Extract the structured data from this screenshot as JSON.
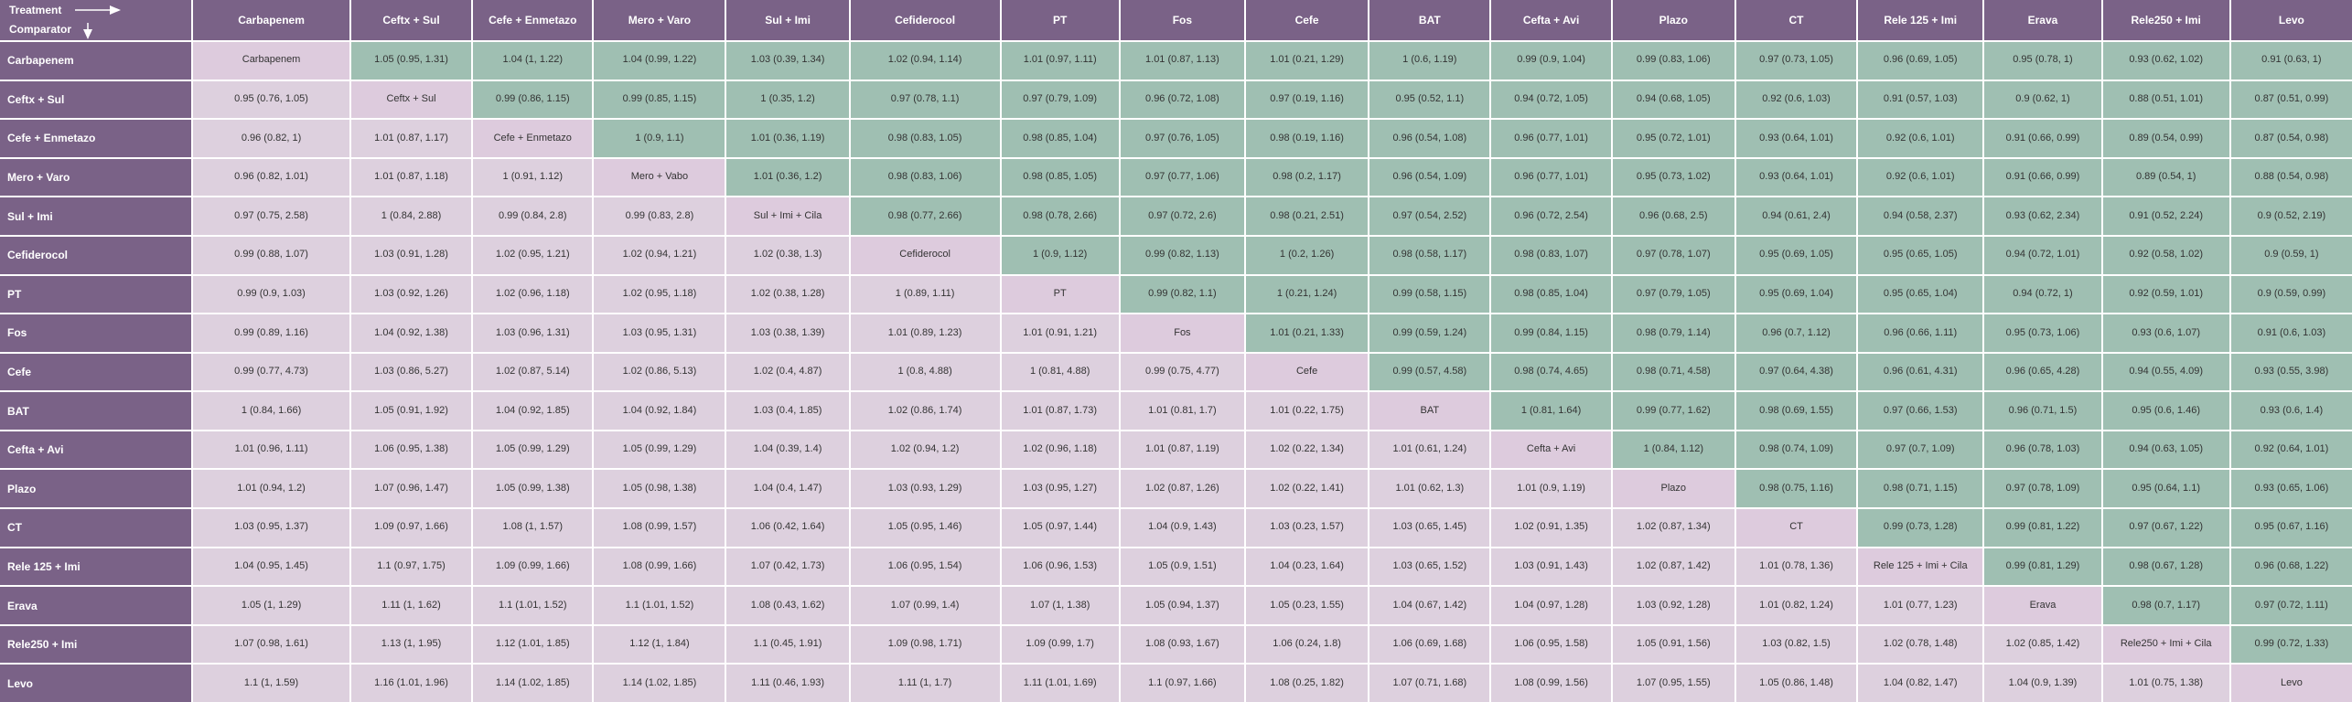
{
  "header": {
    "treatment": "Treatment",
    "comparator": "Comparator"
  },
  "columns": [
    "Carbapenem",
    "Ceftx + Sul",
    "Cefe + Enmetazo",
    "Mero + Varo",
    "Sul + Imi",
    "Cefiderocol",
    "PT",
    "Fos",
    "Cefe",
    "BAT",
    "Cefta + Avi",
    "Plazo",
    "CT",
    "Rele 125 + Imi",
    "Erava",
    "Rele250 + Imi",
    "Levo"
  ],
  "rows": [
    {
      "label": "Carbapenem",
      "cells": [
        "Carbapenem",
        "1.05 (0.95, 1.31)",
        "1.04 (1, 1.22)",
        "1.04 (0.99, 1.22)",
        "1.03 (0.39, 1.34)",
        "1.02 (0.94, 1.14)",
        "1.01 (0.97, 1.11)",
        "1.01 (0.87, 1.13)",
        "1.01 (0.21, 1.29)",
        "1 (0.6, 1.19)",
        "0.99 (0.9, 1.04)",
        "0.99 (0.83, 1.06)",
        "0.97 (0.73, 1.05)",
        "0.96 (0.69, 1.05)",
        "0.95 (0.78, 1)",
        "0.93 (0.62, 1.02)",
        "0.91 (0.63, 1)"
      ]
    },
    {
      "label": "Ceftx + Sul",
      "cells": [
        "0.95 (0.76, 1.05)",
        "Ceftx + Sul",
        "0.99 (0.86, 1.15)",
        "0.99 (0.85, 1.15)",
        "1 (0.35, 1.2)",
        "0.97 (0.78, 1.1)",
        "0.97 (0.79, 1.09)",
        "0.96 (0.72, 1.08)",
        "0.97 (0.19, 1.16)",
        "0.95 (0.52, 1.1)",
        "0.94 (0.72, 1.05)",
        "0.94 (0.68, 1.05)",
        "0.92 (0.6, 1.03)",
        "0.91 (0.57, 1.03)",
        "0.9 (0.62, 1)",
        "0.88 (0.51, 1.01)",
        "0.87 (0.51, 0.99)"
      ]
    },
    {
      "label": "Cefe + Enmetazo",
      "cells": [
        "0.96 (0.82, 1)",
        "1.01 (0.87, 1.17)",
        "Cefe + Enmetazo",
        "1 (0.9, 1.1)",
        "1.01 (0.36, 1.19)",
        "0.98 (0.83, 1.05)",
        "0.98 (0.85, 1.04)",
        "0.97 (0.76, 1.05)",
        "0.98 (0.19, 1.16)",
        "0.96 (0.54, 1.08)",
        "0.96 (0.77, 1.01)",
        "0.95 (0.72, 1.01)",
        "0.93 (0.64, 1.01)",
        "0.92 (0.6, 1.01)",
        "0.91 (0.66, 0.99)",
        "0.89 (0.54, 0.99)",
        "0.87 (0.54, 0.98)"
      ]
    },
    {
      "label": "Mero + Varo",
      "cells": [
        "0.96 (0.82, 1.01)",
        "1.01 (0.87, 1.18)",
        "1 (0.91, 1.12)",
        "Mero + Vabo",
        "1.01 (0.36, 1.2)",
        "0.98 (0.83, 1.06)",
        "0.98 (0.85, 1.05)",
        "0.97 (0.77, 1.06)",
        "0.98 (0.2, 1.17)",
        "0.96 (0.54, 1.09)",
        "0.96 (0.77, 1.01)",
        "0.95 (0.73, 1.02)",
        "0.93 (0.64, 1.01)",
        "0.92 (0.6, 1.01)",
        "0.91 (0.66, 0.99)",
        "0.89 (0.54, 1)",
        "0.88 (0.54, 0.98)"
      ]
    },
    {
      "label": "Sul + Imi",
      "cells": [
        "0.97 (0.75, 2.58)",
        "1 (0.84, 2.88)",
        "0.99 (0.84, 2.8)",
        "0.99 (0.83, 2.8)",
        "Sul + Imi + Cila",
        "0.98 (0.77, 2.66)",
        "0.98 (0.78, 2.66)",
        "0.97 (0.72, 2.6)",
        "0.98 (0.21, 2.51)",
        "0.97 (0.54, 2.52)",
        "0.96 (0.72, 2.54)",
        "0.96 (0.68, 2.5)",
        "0.94 (0.61, 2.4)",
        "0.94 (0.58, 2.37)",
        "0.93 (0.62, 2.34)",
        "0.91 (0.52, 2.24)",
        "0.9 (0.52, 2.19)"
      ]
    },
    {
      "label": "Cefiderocol",
      "cells": [
        "0.99 (0.88, 1.07)",
        "1.03 (0.91, 1.28)",
        "1.02 (0.95, 1.21)",
        "1.02 (0.94, 1.21)",
        "1.02 (0.38, 1.3)",
        "Cefiderocol",
        "1 (0.9, 1.12)",
        "0.99 (0.82, 1.13)",
        "1 (0.2, 1.26)",
        "0.98 (0.58, 1.17)",
        "0.98 (0.83, 1.07)",
        "0.97 (0.78, 1.07)",
        "0.95 (0.69, 1.05)",
        "0.95 (0.65, 1.05)",
        "0.94 (0.72, 1.01)",
        "0.92 (0.58, 1.02)",
        "0.9 (0.59, 1)"
      ]
    },
    {
      "label": "PT",
      "cells": [
        "0.99 (0.9, 1.03)",
        "1.03 (0.92, 1.26)",
        "1.02 (0.96, 1.18)",
        "1.02 (0.95, 1.18)",
        "1.02 (0.38, 1.28)",
        "1 (0.89, 1.11)",
        "PT",
        "0.99 (0.82, 1.1)",
        "1 (0.21, 1.24)",
        "0.99 (0.58, 1.15)",
        "0.98 (0.85, 1.04)",
        "0.97 (0.79, 1.05)",
        "0.95 (0.69, 1.04)",
        "0.95 (0.65, 1.04)",
        "0.94 (0.72, 1)",
        "0.92 (0.59, 1.01)",
        "0.9 (0.59, 0.99)"
      ]
    },
    {
      "label": "Fos",
      "cells": [
        "0.99 (0.89, 1.16)",
        "1.04 (0.92, 1.38)",
        "1.03 (0.96, 1.31)",
        "1.03 (0.95, 1.31)",
        "1.03 (0.38, 1.39)",
        "1.01 (0.89, 1.23)",
        "1.01 (0.91, 1.21)",
        "Fos",
        "1.01 (0.21, 1.33)",
        "0.99 (0.59, 1.24)",
        "0.99 (0.84, 1.15)",
        "0.98 (0.79, 1.14)",
        "0.96 (0.7, 1.12)",
        "0.96 (0.66, 1.11)",
        "0.95 (0.73, 1.06)",
        "0.93 (0.6, 1.07)",
        "0.91 (0.6, 1.03)"
      ]
    },
    {
      "label": "Cefe",
      "cells": [
        "0.99 (0.77, 4.73)",
        "1.03 (0.86, 5.27)",
        "1.02 (0.87, 5.14)",
        "1.02 (0.86, 5.13)",
        "1.02 (0.4, 4.87)",
        "1 (0.8, 4.88)",
        "1 (0.81, 4.88)",
        "0.99 (0.75, 4.77)",
        "Cefe",
        "0.99 (0.57, 4.58)",
        "0.98 (0.74, 4.65)",
        "0.98 (0.71, 4.58)",
        "0.97 (0.64, 4.38)",
        "0.96 (0.61, 4.31)",
        "0.96 (0.65, 4.28)",
        "0.94 (0.55, 4.09)",
        "0.93 (0.55, 3.98)"
      ]
    },
    {
      "label": "BAT",
      "cells": [
        "1 (0.84, 1.66)",
        "1.05 (0.91, 1.92)",
        "1.04 (0.92, 1.85)",
        "1.04 (0.92, 1.84)",
        "1.03 (0.4, 1.85)",
        "1.02 (0.86, 1.74)",
        "1.01 (0.87, 1.73)",
        "1.01 (0.81, 1.7)",
        "1.01 (0.22, 1.75)",
        "BAT",
        "1 (0.81, 1.64)",
        "0.99 (0.77, 1.62)",
        "0.98 (0.69, 1.55)",
        "0.97 (0.66, 1.53)",
        "0.96 (0.71, 1.5)",
        "0.95 (0.6, 1.46)",
        "0.93 (0.6, 1.4)"
      ]
    },
    {
      "label": "Cefta + Avi",
      "cells": [
        "1.01 (0.96, 1.11)",
        "1.06 (0.95, 1.38)",
        "1.05 (0.99, 1.29)",
        "1.05 (0.99, 1.29)",
        "1.04 (0.39, 1.4)",
        "1.02 (0.94, 1.2)",
        "1.02 (0.96, 1.18)",
        "1.01 (0.87, 1.19)",
        "1.02 (0.22, 1.34)",
        "1.01 (0.61, 1.24)",
        "Cefta + Avi",
        "1 (0.84, 1.12)",
        "0.98 (0.74, 1.09)",
        "0.97 (0.7, 1.09)",
        "0.96 (0.78, 1.03)",
        "0.94 (0.63, 1.05)",
        "0.92 (0.64, 1.01)"
      ]
    },
    {
      "label": "Plazo",
      "cells": [
        "1.01 (0.94, 1.2)",
        "1.07 (0.96, 1.47)",
        "1.05 (0.99, 1.38)",
        "1.05 (0.98, 1.38)",
        "1.04 (0.4, 1.47)",
        "1.03 (0.93, 1.29)",
        "1.03 (0.95, 1.27)",
        "1.02 (0.87, 1.26)",
        "1.02 (0.22, 1.41)",
        "1.01 (0.62, 1.3)",
        "1.01 (0.9, 1.19)",
        "Plazo",
        "0.98 (0.75, 1.16)",
        "0.98 (0.71, 1.15)",
        "0.97 (0.78, 1.09)",
        "0.95 (0.64, 1.1)",
        "0.93 (0.65, 1.06)"
      ]
    },
    {
      "label": "CT",
      "cells": [
        "1.03 (0.95, 1.37)",
        "1.09 (0.97, 1.66)",
        "1.08 (1, 1.57)",
        "1.08 (0.99, 1.57)",
        "1.06 (0.42, 1.64)",
        "1.05 (0.95, 1.46)",
        "1.05 (0.97, 1.44)",
        "1.04 (0.9, 1.43)",
        "1.03 (0.23, 1.57)",
        "1.03 (0.65, 1.45)",
        "1.02 (0.91, 1.35)",
        "1.02 (0.87, 1.34)",
        "CT",
        "0.99 (0.73, 1.28)",
        "0.99 (0.81, 1.22)",
        "0.97 (0.67, 1.22)",
        "0.95 (0.67, 1.16)"
      ]
    },
    {
      "label": "Rele 125 + Imi",
      "cells": [
        "1.04 (0.95, 1.45)",
        "1.1 (0.97, 1.75)",
        "1.09 (0.99, 1.66)",
        "1.08 (0.99, 1.66)",
        "1.07 (0.42, 1.73)",
        "1.06 (0.95, 1.54)",
        "1.06 (0.96, 1.53)",
        "1.05 (0.9, 1.51)",
        "1.04 (0.23, 1.64)",
        "1.03 (0.65, 1.52)",
        "1.03 (0.91, 1.43)",
        "1.02 (0.87, 1.42)",
        "1.01 (0.78, 1.36)",
        "Rele 125 + Imi + Cila",
        "0.99 (0.81, 1.29)",
        "0.98 (0.67, 1.28)",
        "0.96 (0.68, 1.22)"
      ]
    },
    {
      "label": "Erava",
      "cells": [
        "1.05 (1, 1.29)",
        "1.11 (1, 1.62)",
        "1.1 (1.01, 1.52)",
        "1.1 (1.01, 1.52)",
        "1.08 (0.43, 1.62)",
        "1.07 (0.99, 1.4)",
        "1.07 (1, 1.38)",
        "1.05 (0.94, 1.37)",
        "1.05 (0.23, 1.55)",
        "1.04 (0.67, 1.42)",
        "1.04 (0.97, 1.28)",
        "1.03 (0.92, 1.28)",
        "1.01 (0.82, 1.24)",
        "1.01 (0.77, 1.23)",
        "Erava",
        "0.98 (0.7, 1.17)",
        "0.97 (0.72, 1.11)"
      ]
    },
    {
      "label": "Rele250 + Imi",
      "cells": [
        "1.07 (0.98, 1.61)",
        "1.13 (1, 1.95)",
        "1.12 (1.01, 1.85)",
        "1.12 (1, 1.84)",
        "1.1 (0.45, 1.91)",
        "1.09 (0.98, 1.71)",
        "1.09 (0.99, 1.7)",
        "1.08 (0.93, 1.67)",
        "1.06 (0.24, 1.8)",
        "1.06 (0.69, 1.68)",
        "1.06 (0.95, 1.58)",
        "1.05 (0.91, 1.56)",
        "1.03 (0.82, 1.5)",
        "1.02 (0.78, 1.48)",
        "1.02 (0.85, 1.42)",
        "Rele250 + Imi + Cila",
        "0.99 (0.72, 1.33)"
      ]
    },
    {
      "label": "Levo",
      "cells": [
        "1.1 (1, 1.59)",
        "1.16 (1.01, 1.96)",
        "1.14 (1.02, 1.85)",
        "1.14 (1.02, 1.85)",
        "1.11 (0.46, 1.93)",
        "1.11 (1, 1.7)",
        "1.11 (1.01, 1.69)",
        "1.1 (0.97, 1.66)",
        "1.08 (0.25, 1.82)",
        "1.07 (0.71, 1.68)",
        "1.08 (0.99, 1.56)",
        "1.07 (0.95, 1.55)",
        "1.05 (0.86, 1.48)",
        "1.04 (0.82, 1.47)",
        "1.04 (0.9, 1.39)",
        "1.01 (0.75, 1.38)",
        "Levo"
      ]
    }
  ]
}
